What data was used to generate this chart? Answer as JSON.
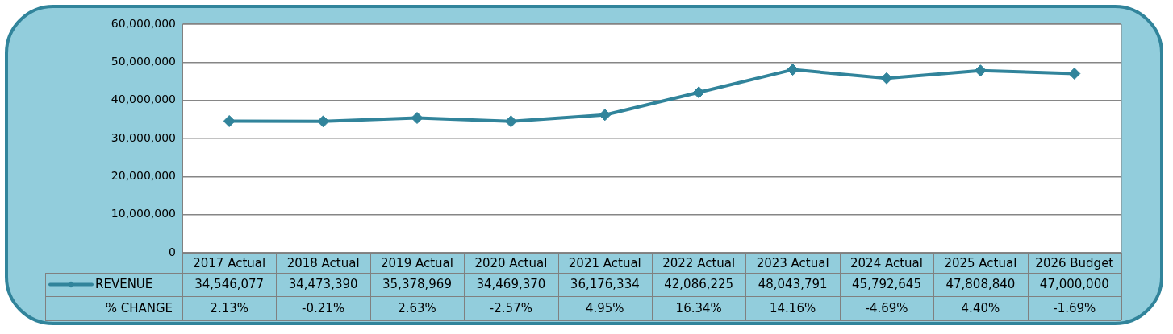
{
  "chart_data": {
    "type": "line",
    "categories": [
      "2017 Actual",
      "2018 Actual",
      "2019 Actual",
      "2020 Actual",
      "2021 Actual",
      "2022 Actual",
      "2023 Actual",
      "2024 Actual",
      "2025 Actual",
      "2026 Budget"
    ],
    "series": [
      {
        "name": "REVENUE",
        "color": "#31849b",
        "values": [
          34546077,
          34473390,
          35378969,
          34469370,
          36176334,
          42086225,
          48043791,
          45792645,
          47808840,
          47000000
        ],
        "value_labels": [
          "34,546,077",
          "34,473,390",
          "35,378,969",
          "34,469,370",
          "36,176,334",
          "42,086,225",
          "48,043,791",
          "45,792,645",
          "47,808,840",
          "47,000,000"
        ]
      }
    ],
    "ylim": [
      0,
      60000000
    ],
    "yticks": [
      {
        "value": 0,
        "label": "0"
      },
      {
        "value": 10000000,
        "label": "10,000,000"
      },
      {
        "value": 20000000,
        "label": "20,000,000"
      },
      {
        "value": 30000000,
        "label": "30,000,000"
      },
      {
        "value": 40000000,
        "label": "40,000,000"
      },
      {
        "value": 50000000,
        "label": "50,000,000"
      },
      {
        "value": 60000000,
        "label": "60,000,000"
      }
    ],
    "grid": "y",
    "marker": "diamond",
    "line_style": "solid",
    "legend": "bottom left",
    "annotations": [
      "% CHANGE",
      "2.13%",
      "-0.21%",
      "2.63%",
      "-2.57%",
      "4.95%",
      "16.34%",
      "14.16%",
      "-4.69%",
      "4.40%",
      "-1.69%"
    ]
  }
}
